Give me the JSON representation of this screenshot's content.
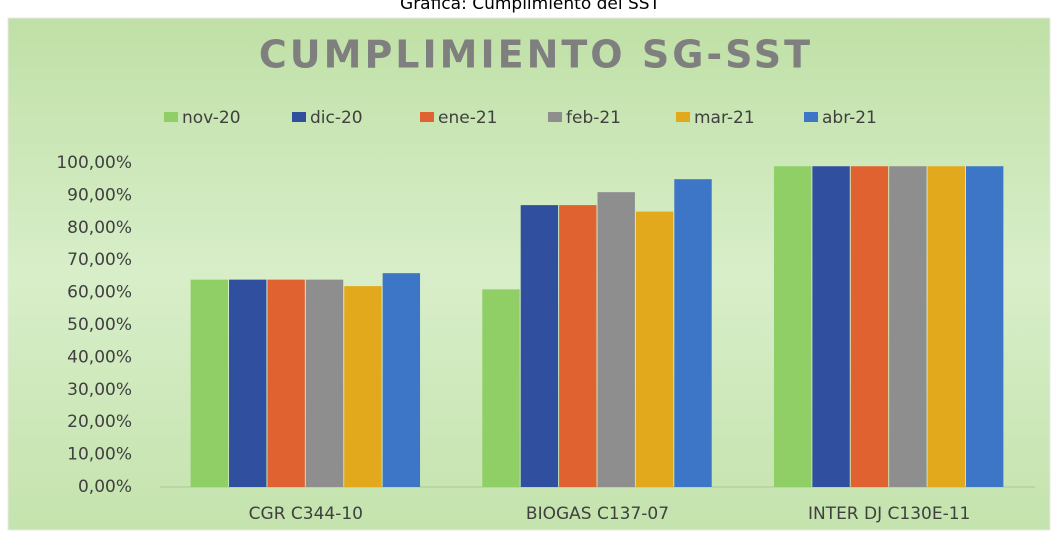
{
  "chart_data": {
    "type": "bar",
    "caption": "Gráfica: Cumplimiento del SST",
    "title": "CUMPLIMIENTO SG-SST",
    "categories": [
      "CGR C344-10",
      "BIOGAS C137-07",
      "INTER DJ C130E-11"
    ],
    "series": [
      {
        "name": "nov-20",
        "color": "#8fcf66",
        "values": [
          64,
          61,
          99
        ]
      },
      {
        "name": "dic-20",
        "color": "#30509f",
        "values": [
          64,
          87,
          99
        ]
      },
      {
        "name": "ene-21",
        "color": "#df6230",
        "values": [
          64,
          87,
          99
        ]
      },
      {
        "name": "feb-21",
        "color": "#8e8e8e",
        "values": [
          64,
          91,
          99
        ]
      },
      {
        "name": "mar-21",
        "color": "#e2a91c",
        "values": [
          62,
          85,
          99
        ]
      },
      {
        "name": "abr-21",
        "color": "#3d76c6",
        "values": [
          66,
          95,
          99
        ]
      }
    ],
    "ylim": [
      0,
      100
    ],
    "yticks": [
      {
        "value": 0,
        "label": "0,00%"
      },
      {
        "value": 10,
        "label": "10,00%"
      },
      {
        "value": 20,
        "label": "20,00%"
      },
      {
        "value": 30,
        "label": "30,00%"
      },
      {
        "value": 40,
        "label": "40,00%"
      },
      {
        "value": 50,
        "label": "50,00%"
      },
      {
        "value": 60,
        "label": "60,00%"
      },
      {
        "value": 70,
        "label": "70,00%"
      },
      {
        "value": 80,
        "label": "80,00%"
      },
      {
        "value": 90,
        "label": "90,00%"
      },
      {
        "value": 100,
        "label": "100,00%"
      }
    ],
    "legend": "top"
  }
}
